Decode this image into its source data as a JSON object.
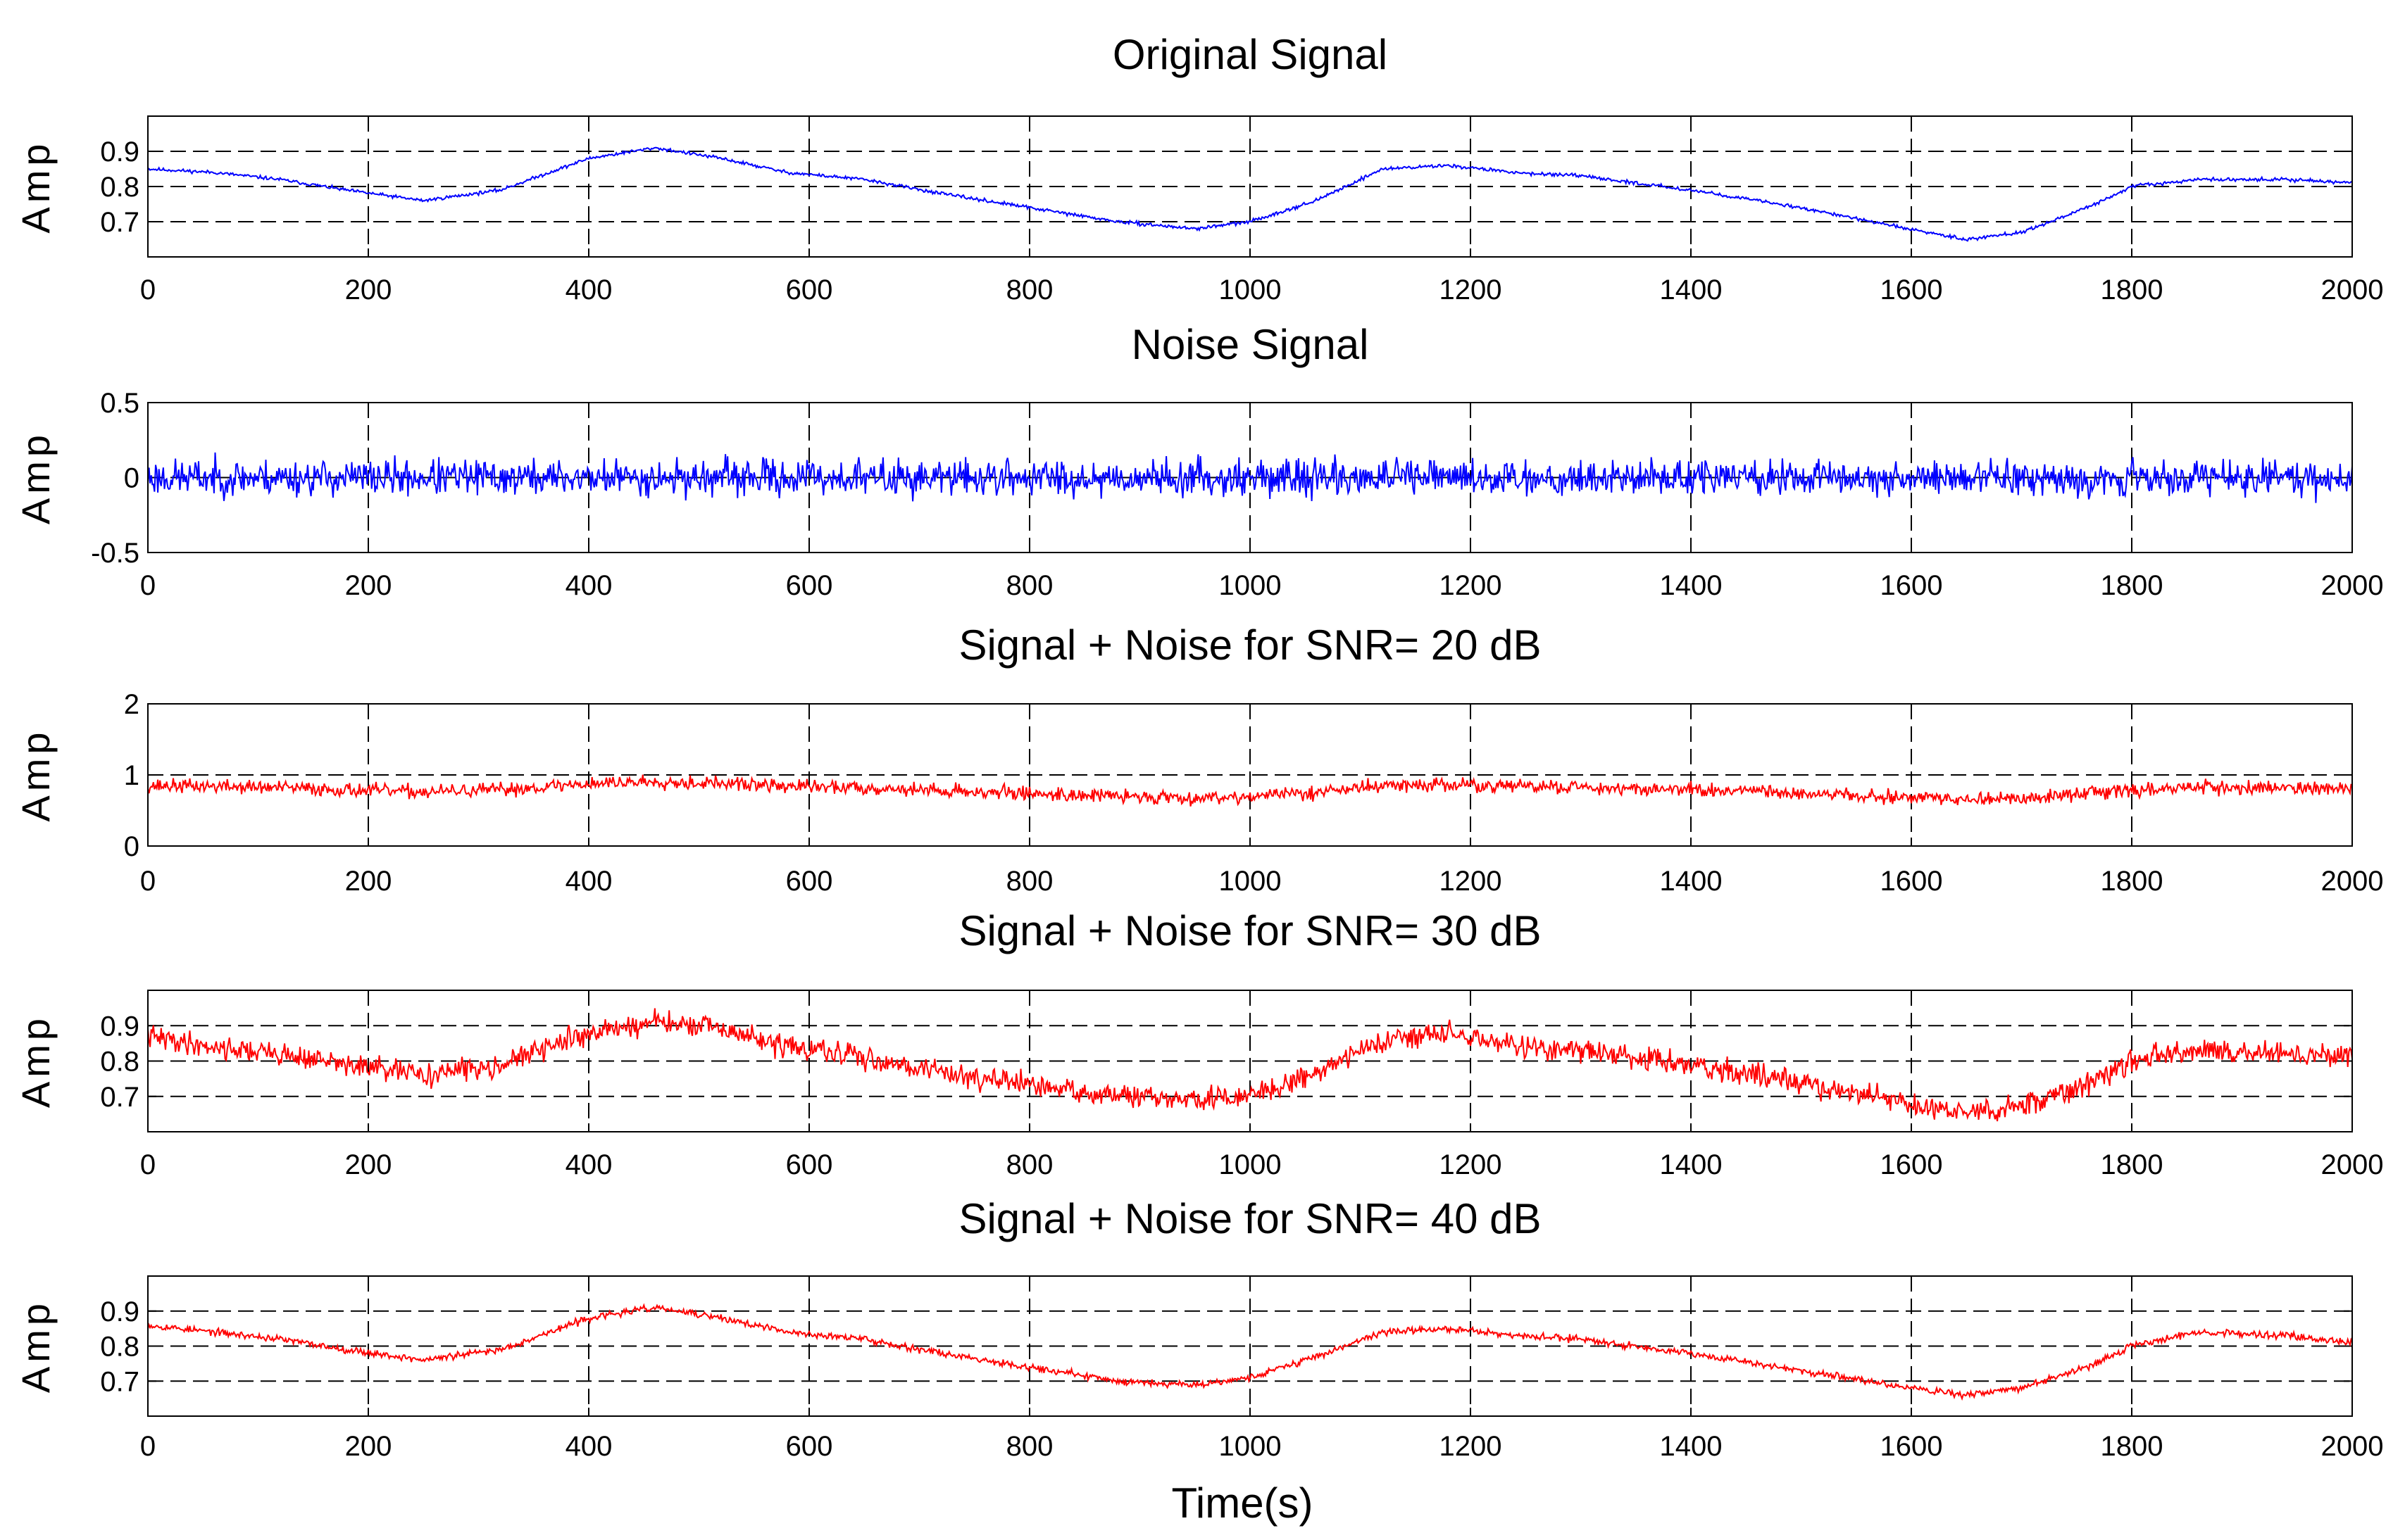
{
  "figure": {
    "xlabel": "Time(s)"
  },
  "chart_data": [
    {
      "type": "line",
      "title": "Original Signal",
      "ylabel": "Amp",
      "xlim": [
        0,
        2000
      ],
      "ylim": [
        0.6,
        1.0
      ],
      "xticks": [
        "0",
        "200",
        "400",
        "600",
        "800",
        "1000",
        "1200",
        "1400",
        "1600",
        "1800",
        "2000"
      ],
      "yticks": [
        "0.7",
        "0.8",
        "0.9"
      ],
      "ytick_values": [
        0.7,
        0.8,
        0.9
      ],
      "grid": true,
      "series": [
        {
          "name": "Original Signal",
          "color": "#0000ff",
          "noise": 0.003,
          "seed": 11,
          "x": [
            0,
            60,
            120,
            180,
            250,
            320,
            400,
            460,
            520,
            580,
            650,
            720,
            800,
            880,
            950,
            1000,
            1060,
            1120,
            1180,
            1240,
            1300,
            1400,
            1500,
            1580,
            1650,
            1700,
            1760,
            1800,
            1860,
            1940,
            2000
          ],
          "y": [
            0.85,
            0.84,
            0.82,
            0.79,
            0.76,
            0.79,
            0.88,
            0.91,
            0.88,
            0.84,
            0.82,
            0.78,
            0.74,
            0.7,
            0.68,
            0.7,
            0.76,
            0.85,
            0.86,
            0.84,
            0.83,
            0.79,
            0.74,
            0.69,
            0.65,
            0.67,
            0.74,
            0.8,
            0.82,
            0.82,
            0.81
          ]
        }
      ]
    },
    {
      "type": "line",
      "title": "Noise Signal",
      "ylabel": "Amp",
      "xlim": [
        0,
        2000
      ],
      "ylim": [
        -0.5,
        0.5
      ],
      "xticks": [
        "0",
        "200",
        "400",
        "600",
        "800",
        "1000",
        "1200",
        "1400",
        "1600",
        "1800",
        "2000"
      ],
      "yticks": [
        "-0.5",
        "0",
        "0.5"
      ],
      "ytick_values": [
        -0.5,
        0,
        0.5
      ],
      "grid": true,
      "series": [
        {
          "name": "Noise",
          "color": "#0000ff",
          "noise": 0.075,
          "seed": 23,
          "x": [
            0,
            2000
          ],
          "y": [
            0,
            0
          ]
        }
      ]
    },
    {
      "type": "line",
      "title": "Signal + Noise for SNR= 20 dB",
      "ylabel": "Amp",
      "xlim": [
        0,
        2000
      ],
      "ylim": [
        0,
        2
      ],
      "xticks": [
        "0",
        "200",
        "400",
        "600",
        "800",
        "1000",
        "1200",
        "1400",
        "1600",
        "1800",
        "2000"
      ],
      "yticks": [
        "0",
        "1",
        "2"
      ],
      "ytick_values": [
        0,
        1,
        2
      ],
      "grid": true,
      "series": [
        {
          "name": "SNR 20 dB",
          "color": "#ff0000",
          "noise": 0.06,
          "seed": 37,
          "x": [
            0,
            60,
            120,
            180,
            250,
            320,
            400,
            460,
            520,
            580,
            650,
            720,
            800,
            880,
            950,
            1000,
            1060,
            1120,
            1180,
            1240,
            1300,
            1400,
            1500,
            1580,
            1650,
            1700,
            1760,
            1800,
            1860,
            1940,
            2000
          ],
          "y": [
            0.85,
            0.84,
            0.82,
            0.79,
            0.76,
            0.79,
            0.88,
            0.91,
            0.88,
            0.84,
            0.82,
            0.78,
            0.74,
            0.7,
            0.68,
            0.7,
            0.76,
            0.85,
            0.86,
            0.84,
            0.83,
            0.79,
            0.74,
            0.69,
            0.65,
            0.67,
            0.74,
            0.8,
            0.82,
            0.82,
            0.81
          ]
        }
      ]
    },
    {
      "type": "line",
      "title": "Signal + Noise for SNR= 30 dB",
      "ylabel": "Amp",
      "xlim": [
        0,
        2000
      ],
      "ylim": [
        0.6,
        1.0
      ],
      "xticks": [
        "0",
        "200",
        "400",
        "600",
        "800",
        "1000",
        "1200",
        "1400",
        "1600",
        "1800",
        "2000"
      ],
      "yticks": [
        "0.7",
        "0.8",
        "0.9"
      ],
      "ytick_values": [
        0.7,
        0.8,
        0.9
      ],
      "grid": true,
      "series": [
        {
          "name": "SNR 30 dB",
          "color": "#ff0000",
          "noise": 0.02,
          "seed": 41,
          "x": [
            0,
            60,
            120,
            180,
            250,
            320,
            400,
            460,
            520,
            580,
            650,
            720,
            800,
            880,
            950,
            1000,
            1060,
            1120,
            1180,
            1240,
            1300,
            1400,
            1500,
            1580,
            1650,
            1700,
            1760,
            1800,
            1860,
            1940,
            2000
          ],
          "y": [
            0.87,
            0.84,
            0.82,
            0.79,
            0.76,
            0.79,
            0.88,
            0.91,
            0.89,
            0.84,
            0.81,
            0.77,
            0.73,
            0.7,
            0.69,
            0.7,
            0.77,
            0.86,
            0.88,
            0.84,
            0.83,
            0.79,
            0.74,
            0.69,
            0.65,
            0.67,
            0.74,
            0.8,
            0.83,
            0.82,
            0.81
          ]
        }
      ]
    },
    {
      "type": "line",
      "title": "Signal + Noise for SNR= 40 dB",
      "ylabel": "Amp",
      "xlim": [
        0,
        2000
      ],
      "ylim": [
        0.6,
        1.0
      ],
      "xticks": [
        "0",
        "200",
        "400",
        "600",
        "800",
        "1000",
        "1200",
        "1400",
        "1600",
        "1800",
        "2000"
      ],
      "yticks": [
        "0.7",
        "0.8",
        "0.9"
      ],
      "ytick_values": [
        0.7,
        0.8,
        0.9
      ],
      "grid": true,
      "series": [
        {
          "name": "SNR 40 dB",
          "color": "#ff0000",
          "noise": 0.006,
          "seed": 53,
          "x": [
            0,
            60,
            120,
            180,
            250,
            320,
            400,
            460,
            520,
            580,
            650,
            720,
            800,
            880,
            950,
            1000,
            1060,
            1120,
            1180,
            1240,
            1300,
            1400,
            1500,
            1580,
            1650,
            1700,
            1760,
            1800,
            1860,
            1940,
            2000
          ],
          "y": [
            0.86,
            0.84,
            0.82,
            0.79,
            0.76,
            0.79,
            0.88,
            0.91,
            0.88,
            0.84,
            0.82,
            0.78,
            0.74,
            0.7,
            0.69,
            0.71,
            0.77,
            0.84,
            0.85,
            0.83,
            0.82,
            0.78,
            0.73,
            0.69,
            0.66,
            0.68,
            0.74,
            0.8,
            0.84,
            0.83,
            0.81
          ]
        }
      ]
    }
  ]
}
